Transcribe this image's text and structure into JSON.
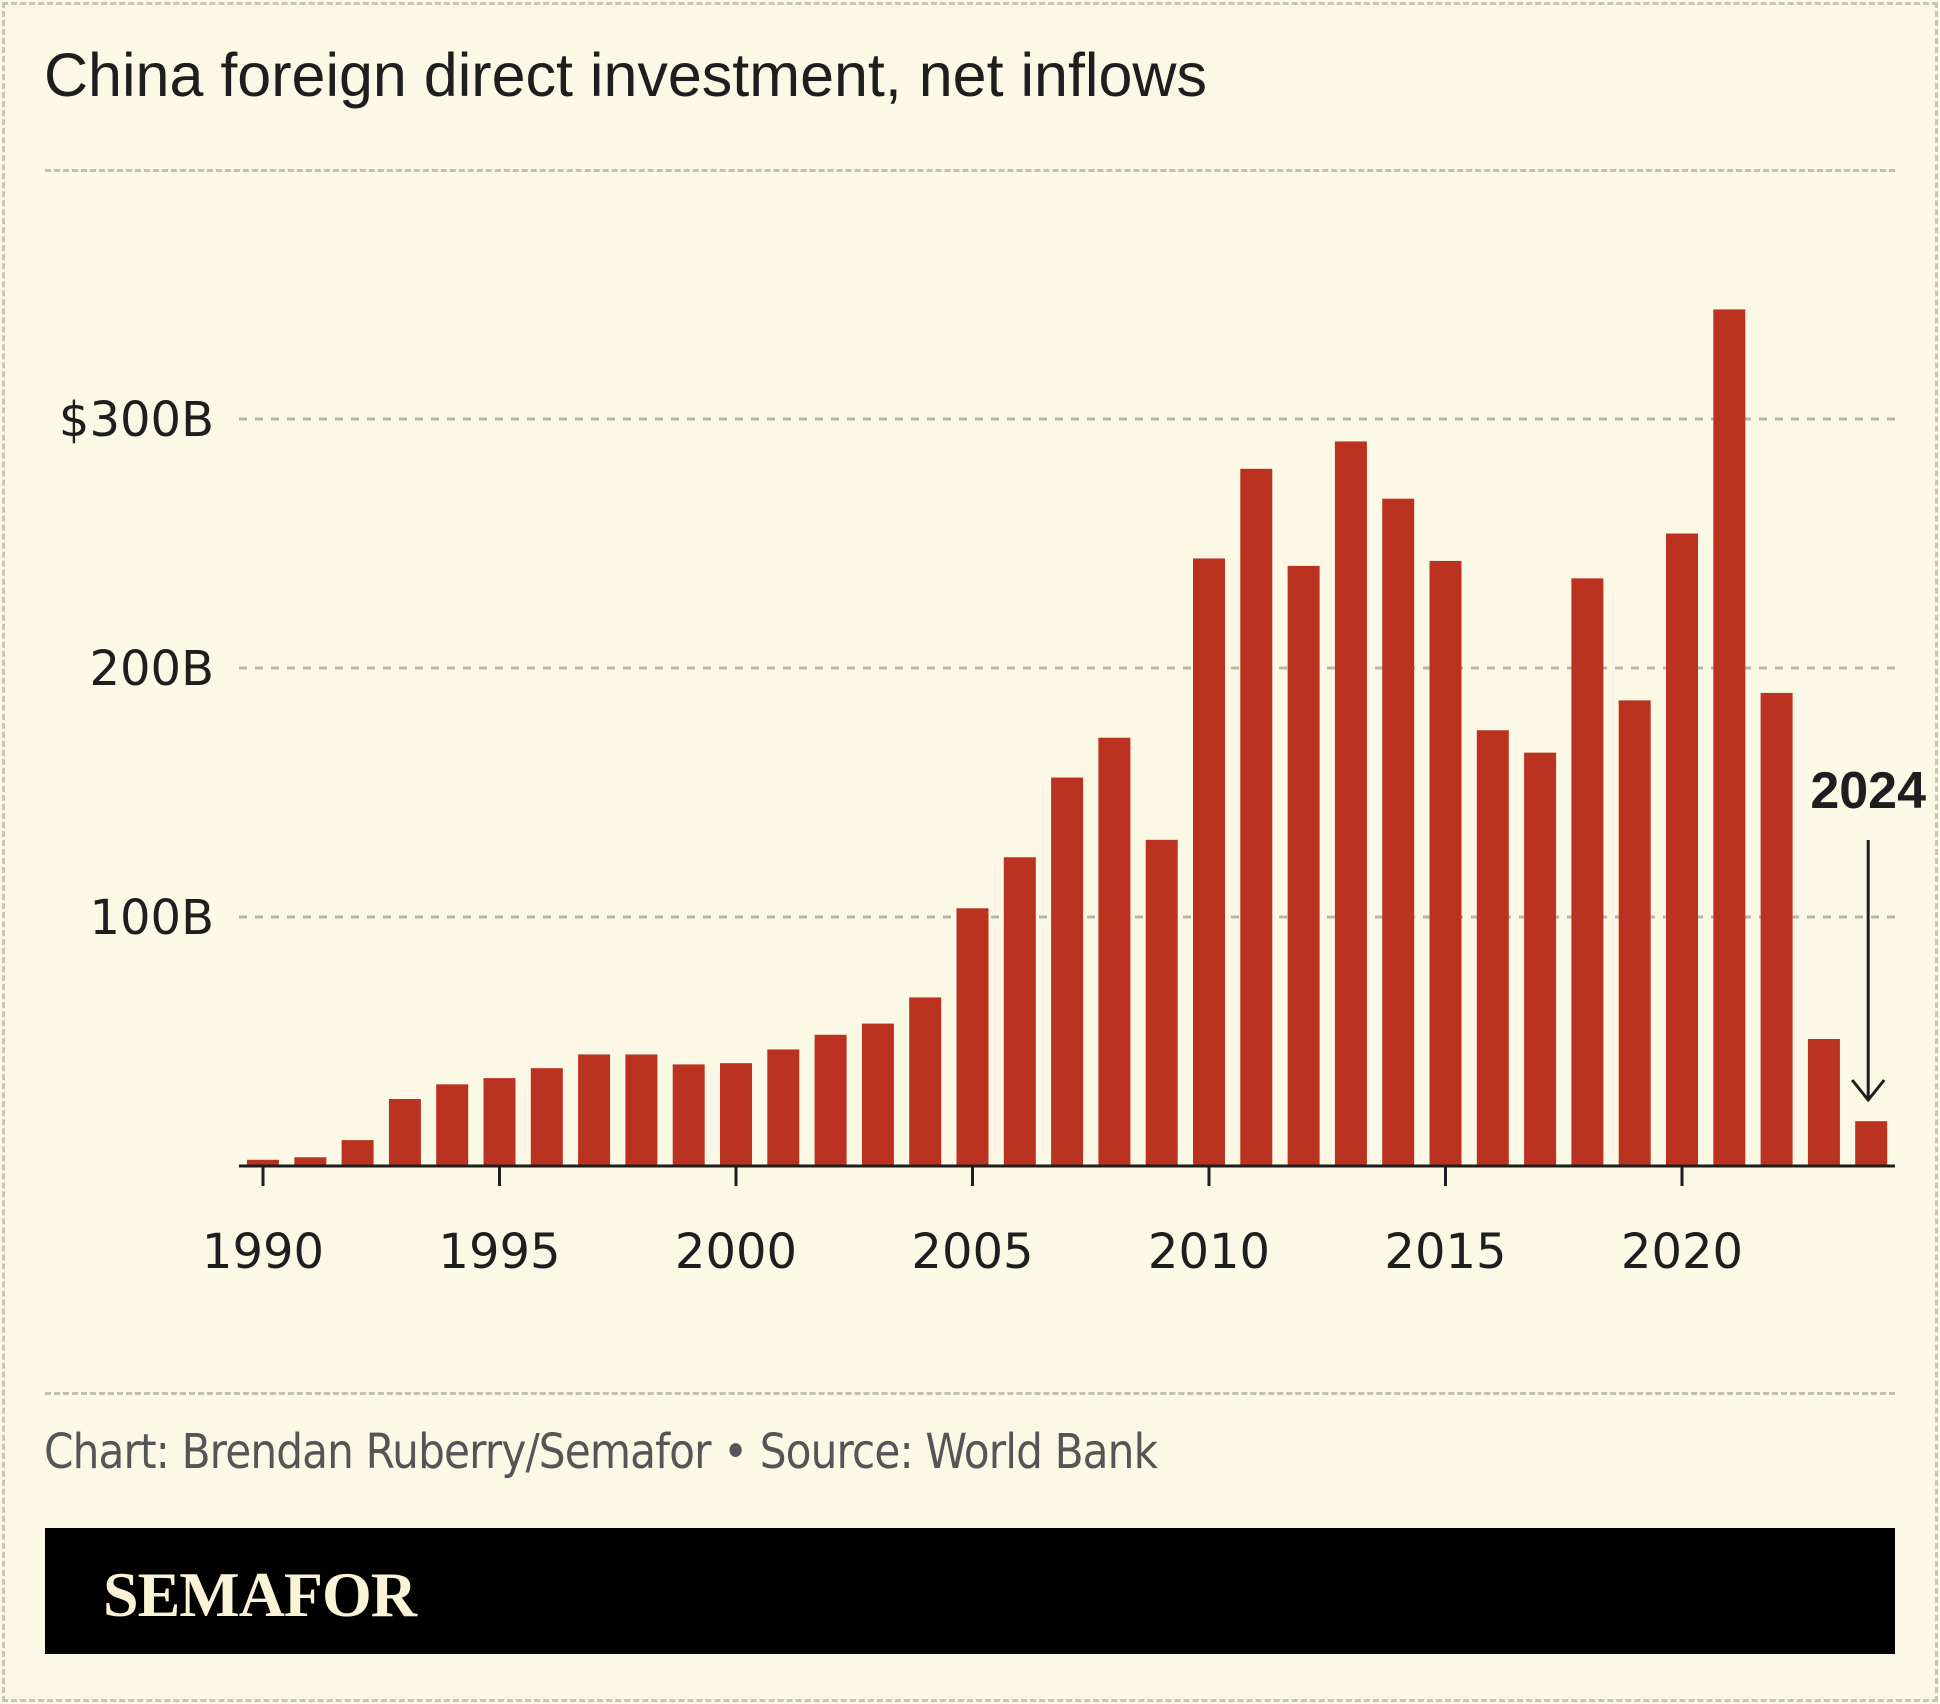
{
  "title": "China foreign direct investment, net inflows",
  "credit": "Chart: Brendan Ruberry/Semafor • Source: World Bank",
  "brand": "SEMAFOR",
  "chart_data": {
    "type": "bar",
    "title": "China foreign direct investment, net inflows",
    "xlabel": "",
    "ylabel": "",
    "ylim": [
      0,
      350
    ],
    "grid": true,
    "bar_color": "#bc3221",
    "y_ticks": [
      {
        "value": 100,
        "label": "100B"
      },
      {
        "value": 200,
        "label": "200B"
      },
      {
        "value": 300,
        "label": "$300B"
      }
    ],
    "x_ticks": [
      1990,
      1995,
      2000,
      2005,
      2010,
      2015,
      2020
    ],
    "categories": [
      1990,
      1991,
      1992,
      1993,
      1994,
      1995,
      1996,
      1997,
      1998,
      1999,
      2000,
      2001,
      2002,
      2003,
      2004,
      2005,
      2006,
      2007,
      2008,
      2009,
      2010,
      2011,
      2012,
      2013,
      2014,
      2015,
      2016,
      2017,
      2018,
      2019,
      2020,
      2021,
      2022,
      2023,
      2024
    ],
    "values": [
      2.5,
      3.5,
      10.4,
      26.9,
      32.8,
      35.3,
      39.3,
      44.8,
      44.8,
      40.8,
      41.3,
      46.8,
      52.7,
      57.2,
      67.7,
      103.5,
      124,
      156,
      172,
      131,
      244,
      280,
      241,
      291,
      268,
      243,
      175,
      166,
      236,
      187,
      254,
      344,
      190,
      51,
      18
    ],
    "annotation": {
      "label": "2024",
      "year": 2024
    }
  }
}
